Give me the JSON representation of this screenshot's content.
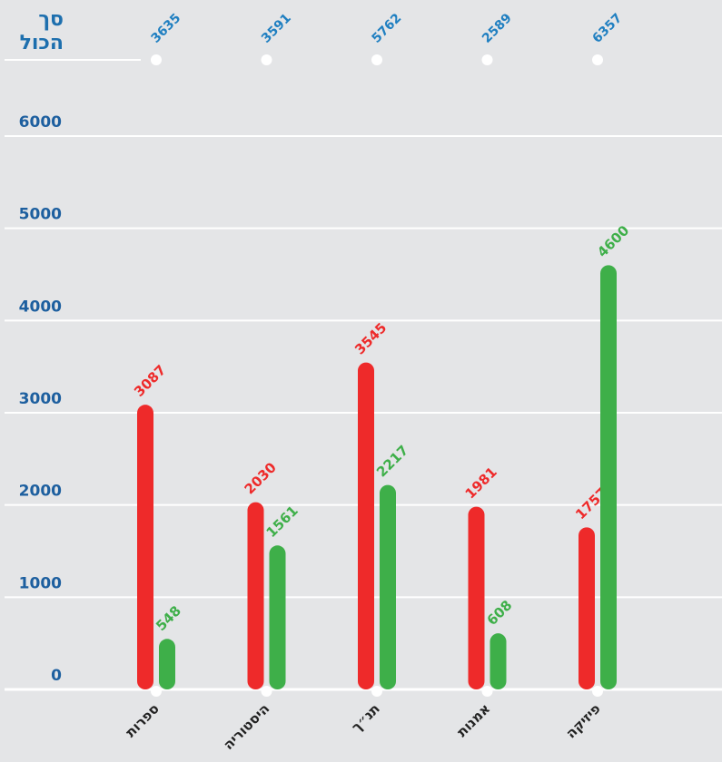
{
  "chart_data": {
    "type": "bar",
    "total_label": [
      "סך",
      "הכול"
    ],
    "categories": [
      "ספרות",
      "היסטוריה",
      "תנ״ך",
      "אמנות",
      "פיזיקה"
    ],
    "totals": [
      3635,
      3591,
      5762,
      2589,
      6357
    ],
    "series": [
      {
        "color": "#ee2a2a",
        "values": [
          3087,
          2030,
          3545,
          1981,
          1757
        ]
      },
      {
        "color": "#3eaf49",
        "values": [
          548,
          1561,
          2217,
          608,
          4600
        ]
      }
    ],
    "ylim": [
      0,
      6000
    ],
    "yticks": [
      0,
      1000,
      2000,
      3000,
      4000,
      5000,
      6000
    ],
    "grid": true
  }
}
